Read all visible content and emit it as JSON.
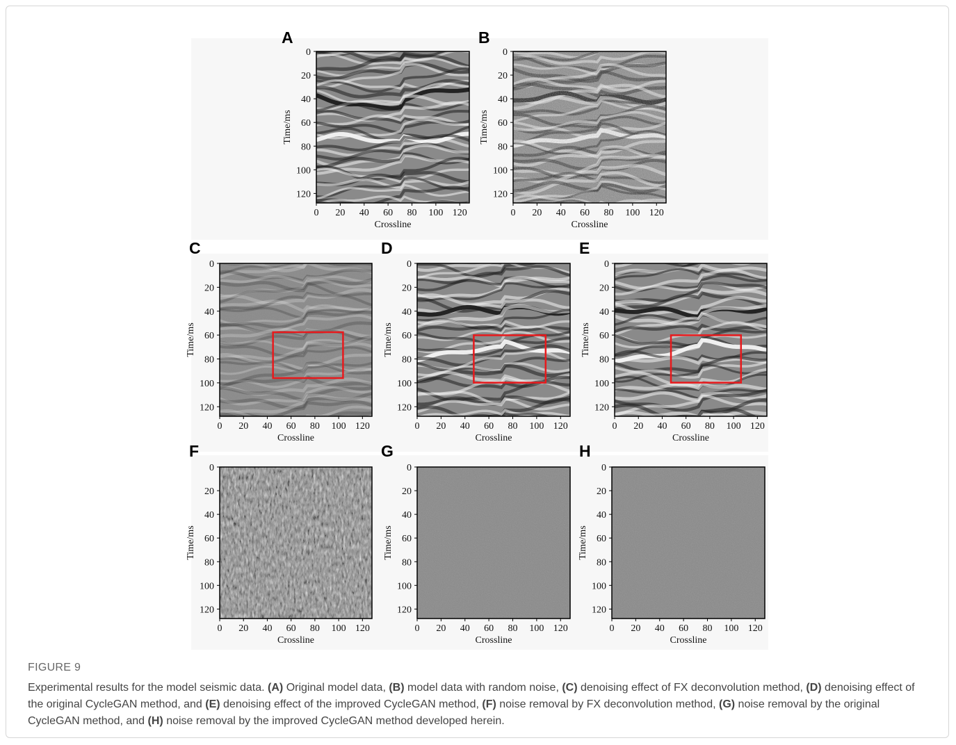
{
  "figure": {
    "panels": [
      {
        "label": "A"
      },
      {
        "label": "B"
      },
      {
        "label": "C"
      },
      {
        "label": "D"
      },
      {
        "label": "E"
      },
      {
        "label": "F"
      },
      {
        "label": "G"
      },
      {
        "label": "H"
      }
    ],
    "x_label": "Crossline",
    "y_label": "Time/ms",
    "xlim": [
      0,
      128
    ],
    "ylim": [
      0,
      128
    ],
    "xticks": [
      0,
      20,
      40,
      60,
      80,
      100,
      120
    ],
    "yticks": [
      0,
      20,
      40,
      60,
      80,
      100,
      120
    ],
    "caption": {
      "title": "FIGURE 9",
      "parts": [
        "Experimental results for the model seismic data. ",
        "(A)",
        " Original model data, ",
        "(B)",
        " model data with random noise, ",
        "(C)",
        " denoising effect of FX deconvolution method, ",
        "(D)",
        " denoising effect of the original CycleGAN method, and ",
        "(E)",
        " denoising effect of the improved CycleGAN method, ",
        "(F)",
        " noise removal by FX deconvolution method, ",
        "(G)",
        " noise removal by the original CycleGAN method, and ",
        "(H)",
        " noise removal by the improved CycleGAN method developed herein."
      ]
    }
  }
}
